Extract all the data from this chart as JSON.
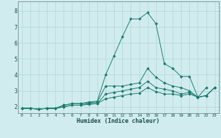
{
  "xlabel": "Humidex (Indice chaleur)",
  "bg_color": "#d1ecee",
  "grid_color": "#b0d4d8",
  "line_color": "#1a7a6e",
  "x_ticks": [
    0,
    1,
    2,
    3,
    4,
    5,
    6,
    7,
    8,
    9,
    10,
    11,
    12,
    13,
    14,
    15,
    16,
    17,
    18,
    19,
    20,
    21,
    22,
    23
  ],
  "y_ticks": [
    2,
    3,
    4,
    5,
    6,
    7,
    8
  ],
  "ylim": [
    1.6,
    8.6
  ],
  "xlim": [
    -0.5,
    23.5
  ],
  "series": [
    [
      1.9,
      1.9,
      1.85,
      1.9,
      1.9,
      2.1,
      2.2,
      2.2,
      2.3,
      2.35,
      4.0,
      5.2,
      6.4,
      7.5,
      7.5,
      7.9,
      7.2,
      4.7,
      4.4,
      3.9,
      3.9,
      2.6,
      3.2,
      null
    ],
    [
      1.9,
      1.9,
      1.85,
      1.9,
      1.9,
      2.1,
      2.2,
      2.2,
      2.25,
      2.3,
      3.3,
      3.3,
      3.3,
      3.4,
      3.5,
      4.4,
      3.85,
      3.5,
      3.3,
      3.2,
      3.0,
      2.6,
      2.7,
      3.2
    ],
    [
      1.9,
      1.9,
      1.85,
      1.9,
      1.9,
      2.0,
      2.1,
      2.1,
      2.2,
      2.2,
      2.8,
      2.9,
      3.0,
      3.1,
      3.2,
      3.6,
      3.2,
      3.1,
      3.0,
      2.8,
      2.9,
      2.6,
      2.7,
      3.2
    ],
    [
      1.9,
      1.9,
      1.85,
      1.9,
      1.9,
      2.0,
      2.1,
      2.1,
      2.15,
      2.2,
      2.5,
      2.6,
      2.7,
      2.8,
      2.85,
      3.2,
      2.95,
      2.8,
      2.8,
      2.7,
      2.8,
      2.6,
      2.7,
      3.2
    ]
  ]
}
